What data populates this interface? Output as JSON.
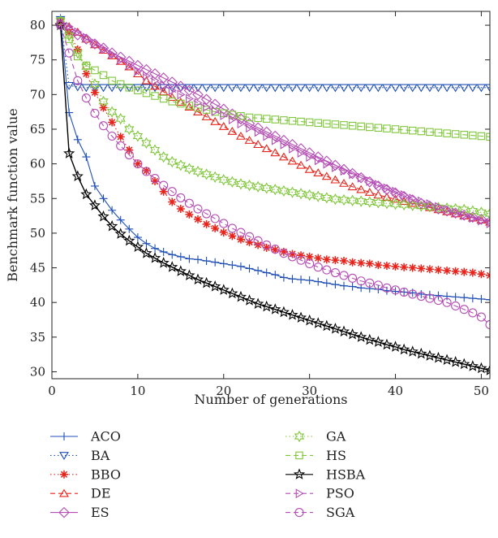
{
  "chart_data": {
    "type": "line",
    "title": "",
    "xlabel": "Number of generations",
    "ylabel": "Benchmark function value",
    "xlim": [
      0,
      51
    ],
    "ylim": [
      29,
      82
    ],
    "xticks": [
      0,
      10,
      20,
      30,
      40,
      50
    ],
    "yticks": [
      30,
      35,
      40,
      45,
      50,
      55,
      60,
      65,
      70,
      75,
      80
    ],
    "grid": false,
    "legend_placement": "below",
    "x": [
      1,
      2,
      3,
      4,
      5,
      6,
      7,
      8,
      9,
      10,
      11,
      12,
      13,
      14,
      15,
      16,
      17,
      18,
      19,
      20,
      21,
      22,
      23,
      24,
      25,
      26,
      27,
      28,
      29,
      30,
      31,
      32,
      33,
      34,
      35,
      36,
      37,
      38,
      39,
      40,
      41,
      42,
      43,
      44,
      45,
      46,
      47,
      48,
      49,
      50,
      51
    ],
    "series": [
      {
        "name": "ACO",
        "color": "#1f4fb4",
        "marker": "plus",
        "dash": "solid",
        "values": [
          81.0,
          67.4,
          63.5,
          61.0,
          56.8,
          55.0,
          53.3,
          51.9,
          50.6,
          49.4,
          48.5,
          47.8,
          47.3,
          46.9,
          46.6,
          46.3,
          46.2,
          46.0,
          45.8,
          45.6,
          45.4,
          45.2,
          44.9,
          44.6,
          44.3,
          44.0,
          43.6,
          43.4,
          43.3,
          43.2,
          43.0,
          42.8,
          42.6,
          42.4,
          42.3,
          42.1,
          42.0,
          41.9,
          41.7,
          41.6,
          41.5,
          41.4,
          41.2,
          41.1,
          41.0,
          40.9,
          40.8,
          40.7,
          40.6,
          40.5,
          40.4
        ]
      },
      {
        "name": "BA",
        "color": "#1f4fb4",
        "marker": "triangle-down",
        "dash": "dotted",
        "values": [
          80.8,
          71.3,
          71.1,
          71.0,
          71.0,
          71.0,
          71.0,
          71.0,
          71.0,
          71.0,
          71.0,
          71.0,
          71.0,
          71.0,
          71.0,
          71.0,
          71.0,
          71.0,
          71.0,
          71.0,
          71.0,
          71.0,
          71.0,
          71.0,
          71.0,
          71.0,
          71.0,
          71.0,
          71.0,
          71.0,
          71.0,
          71.0,
          71.0,
          71.0,
          71.0,
          71.0,
          71.0,
          71.0,
          71.0,
          71.0,
          71.0,
          71.0,
          71.0,
          71.0,
          71.0,
          71.0,
          71.0,
          71.0,
          71.0,
          71.0,
          71.0
        ]
      },
      {
        "name": "BBO",
        "color": "#e8231b",
        "marker": "asterisk",
        "dash": "dotted",
        "values": [
          80.5,
          79.0,
          76.5,
          73.0,
          70.3,
          68.1,
          66.0,
          63.9,
          62.0,
          60.0,
          59.0,
          57.5,
          56.0,
          54.5,
          53.5,
          52.7,
          52.0,
          51.3,
          50.7,
          50.1,
          49.6,
          49.1,
          48.7,
          48.3,
          47.9,
          47.6,
          47.3,
          47.0,
          46.8,
          46.6,
          46.4,
          46.2,
          46.1,
          46.0,
          45.8,
          45.7,
          45.6,
          45.4,
          45.3,
          45.2,
          45.1,
          45.0,
          44.9,
          44.8,
          44.7,
          44.6,
          44.5,
          44.4,
          44.3,
          44.1,
          43.9
        ]
      },
      {
        "name": "DE",
        "color": "#e8231b",
        "marker": "triangle-up",
        "dash": "dashed",
        "values": [
          80.4,
          79.8,
          79.0,
          78.0,
          77.2,
          76.4,
          75.6,
          74.8,
          74.0,
          73.0,
          72.0,
          71.2,
          70.4,
          69.6,
          68.9,
          68.2,
          67.5,
          66.8,
          66.1,
          65.4,
          64.7,
          64.0,
          63.4,
          62.8,
          62.2,
          61.6,
          61.0,
          60.4,
          59.8,
          59.2,
          58.7,
          58.2,
          57.7,
          57.2,
          56.7,
          56.3,
          55.9,
          55.5,
          55.2,
          54.9,
          54.6,
          54.3,
          54.0,
          53.7,
          53.4,
          53.1,
          52.8,
          52.5,
          52.2,
          51.9,
          51.6
        ]
      },
      {
        "name": "ES",
        "color": "#b44cb4",
        "marker": "diamond",
        "dash": "solid",
        "values": [
          80.2,
          79.3,
          78.6,
          78.0,
          77.3,
          76.7,
          76.0,
          75.4,
          74.8,
          74.2,
          73.6,
          73.0,
          72.4,
          71.8,
          71.2,
          70.6,
          70.0,
          69.3,
          68.6,
          67.9,
          67.2,
          66.5,
          65.8,
          65.2,
          64.6,
          64.0,
          63.4,
          62.8,
          62.2,
          61.6,
          61.0,
          60.4,
          59.8,
          59.2,
          58.6,
          58.0,
          57.4,
          56.8,
          56.3,
          55.8,
          55.3,
          54.8,
          54.3,
          53.9,
          53.5,
          53.2,
          52.9,
          52.6,
          52.3,
          52.0,
          51.7
        ]
      },
      {
        "name": "GA",
        "color": "#7fc63a",
        "marker": "hexagram",
        "dash": "dotted",
        "values": [
          80.6,
          78.5,
          76.0,
          74.0,
          71.5,
          69.0,
          67.5,
          66.5,
          65.0,
          64.0,
          63.0,
          62.0,
          61.0,
          60.3,
          59.8,
          59.3,
          58.9,
          58.5,
          58.1,
          57.7,
          57.4,
          57.1,
          56.9,
          56.7,
          56.5,
          56.3,
          56.1,
          55.9,
          55.7,
          55.5,
          55.3,
          55.1,
          54.9,
          54.8,
          54.7,
          54.6,
          54.5,
          54.4,
          54.3,
          54.2,
          54.1,
          54.0,
          53.9,
          53.8,
          53.7,
          53.6,
          53.5,
          53.4,
          53.2,
          53.0,
          52.8
        ]
      },
      {
        "name": "HS",
        "color": "#7fc63a",
        "marker": "square",
        "dash": "dashed",
        "values": [
          80.6,
          78.0,
          75.5,
          74.2,
          73.5,
          72.8,
          72.0,
          71.5,
          71.0,
          70.6,
          70.2,
          69.8,
          69.4,
          69.0,
          68.7,
          68.4,
          68.1,
          67.8,
          67.5,
          67.3,
          67.1,
          66.9,
          66.7,
          66.6,
          66.5,
          66.4,
          66.3,
          66.2,
          66.1,
          66.0,
          65.9,
          65.8,
          65.7,
          65.6,
          65.5,
          65.4,
          65.3,
          65.2,
          65.1,
          65.0,
          64.9,
          64.8,
          64.7,
          64.6,
          64.5,
          64.4,
          64.3,
          64.2,
          64.1,
          64.0,
          63.9
        ]
      },
      {
        "name": "HSBA",
        "color": "#000000",
        "marker": "star",
        "dash": "solid",
        "values": [
          80.0,
          61.5,
          58.2,
          55.6,
          54.0,
          52.4,
          51.0,
          49.9,
          48.9,
          48.0,
          47.1,
          46.4,
          45.7,
          45.1,
          44.5,
          43.9,
          43.3,
          42.8,
          42.3,
          41.8,
          41.3,
          40.8,
          40.3,
          39.8,
          39.4,
          39.0,
          38.6,
          38.2,
          37.8,
          37.4,
          37.0,
          36.6,
          36.2,
          35.8,
          35.4,
          35.0,
          34.6,
          34.3,
          33.9,
          33.6,
          33.2,
          32.9,
          32.6,
          32.3,
          32.0,
          31.7,
          31.4,
          31.1,
          30.8,
          30.5,
          30.2
        ]
      },
      {
        "name": "PSO",
        "color": "#b44cb4",
        "marker": "triangle-right",
        "dash": "dashed",
        "values": [
          80.3,
          79.8,
          79.0,
          78.2,
          77.4,
          76.6,
          75.8,
          75.0,
          74.2,
          73.4,
          72.7,
          72.0,
          71.3,
          70.6,
          70.0,
          69.4,
          68.8,
          68.2,
          67.6,
          67.0,
          66.4,
          65.8,
          65.2,
          64.6,
          64.0,
          63.4,
          62.8,
          62.2,
          61.6,
          61.0,
          60.5,
          60.0,
          59.5,
          59.0,
          58.5,
          58.0,
          57.5,
          57.0,
          56.5,
          56.0,
          55.5,
          55.0,
          54.6,
          54.2,
          53.8,
          53.4,
          53.0,
          52.6,
          52.2,
          51.8,
          51.4
        ]
      },
      {
        "name": "SGA",
        "color": "#b44cb4",
        "marker": "circle",
        "dash": "dashed",
        "values": [
          80.0,
          76.0,
          72.0,
          69.5,
          67.3,
          65.5,
          64.0,
          62.6,
          61.3,
          60.0,
          58.9,
          57.9,
          56.9,
          56.0,
          55.1,
          54.3,
          53.5,
          52.8,
          52.1,
          51.4,
          50.7,
          50.1,
          49.5,
          48.9,
          48.3,
          47.7,
          47.1,
          46.6,
          46.1,
          45.6,
          45.1,
          44.7,
          44.3,
          43.9,
          43.5,
          43.1,
          42.8,
          42.5,
          42.1,
          41.8,
          41.5,
          41.2,
          40.9,
          40.6,
          40.3,
          40.0,
          39.5,
          39.0,
          38.5,
          37.9,
          36.8
        ]
      }
    ]
  }
}
